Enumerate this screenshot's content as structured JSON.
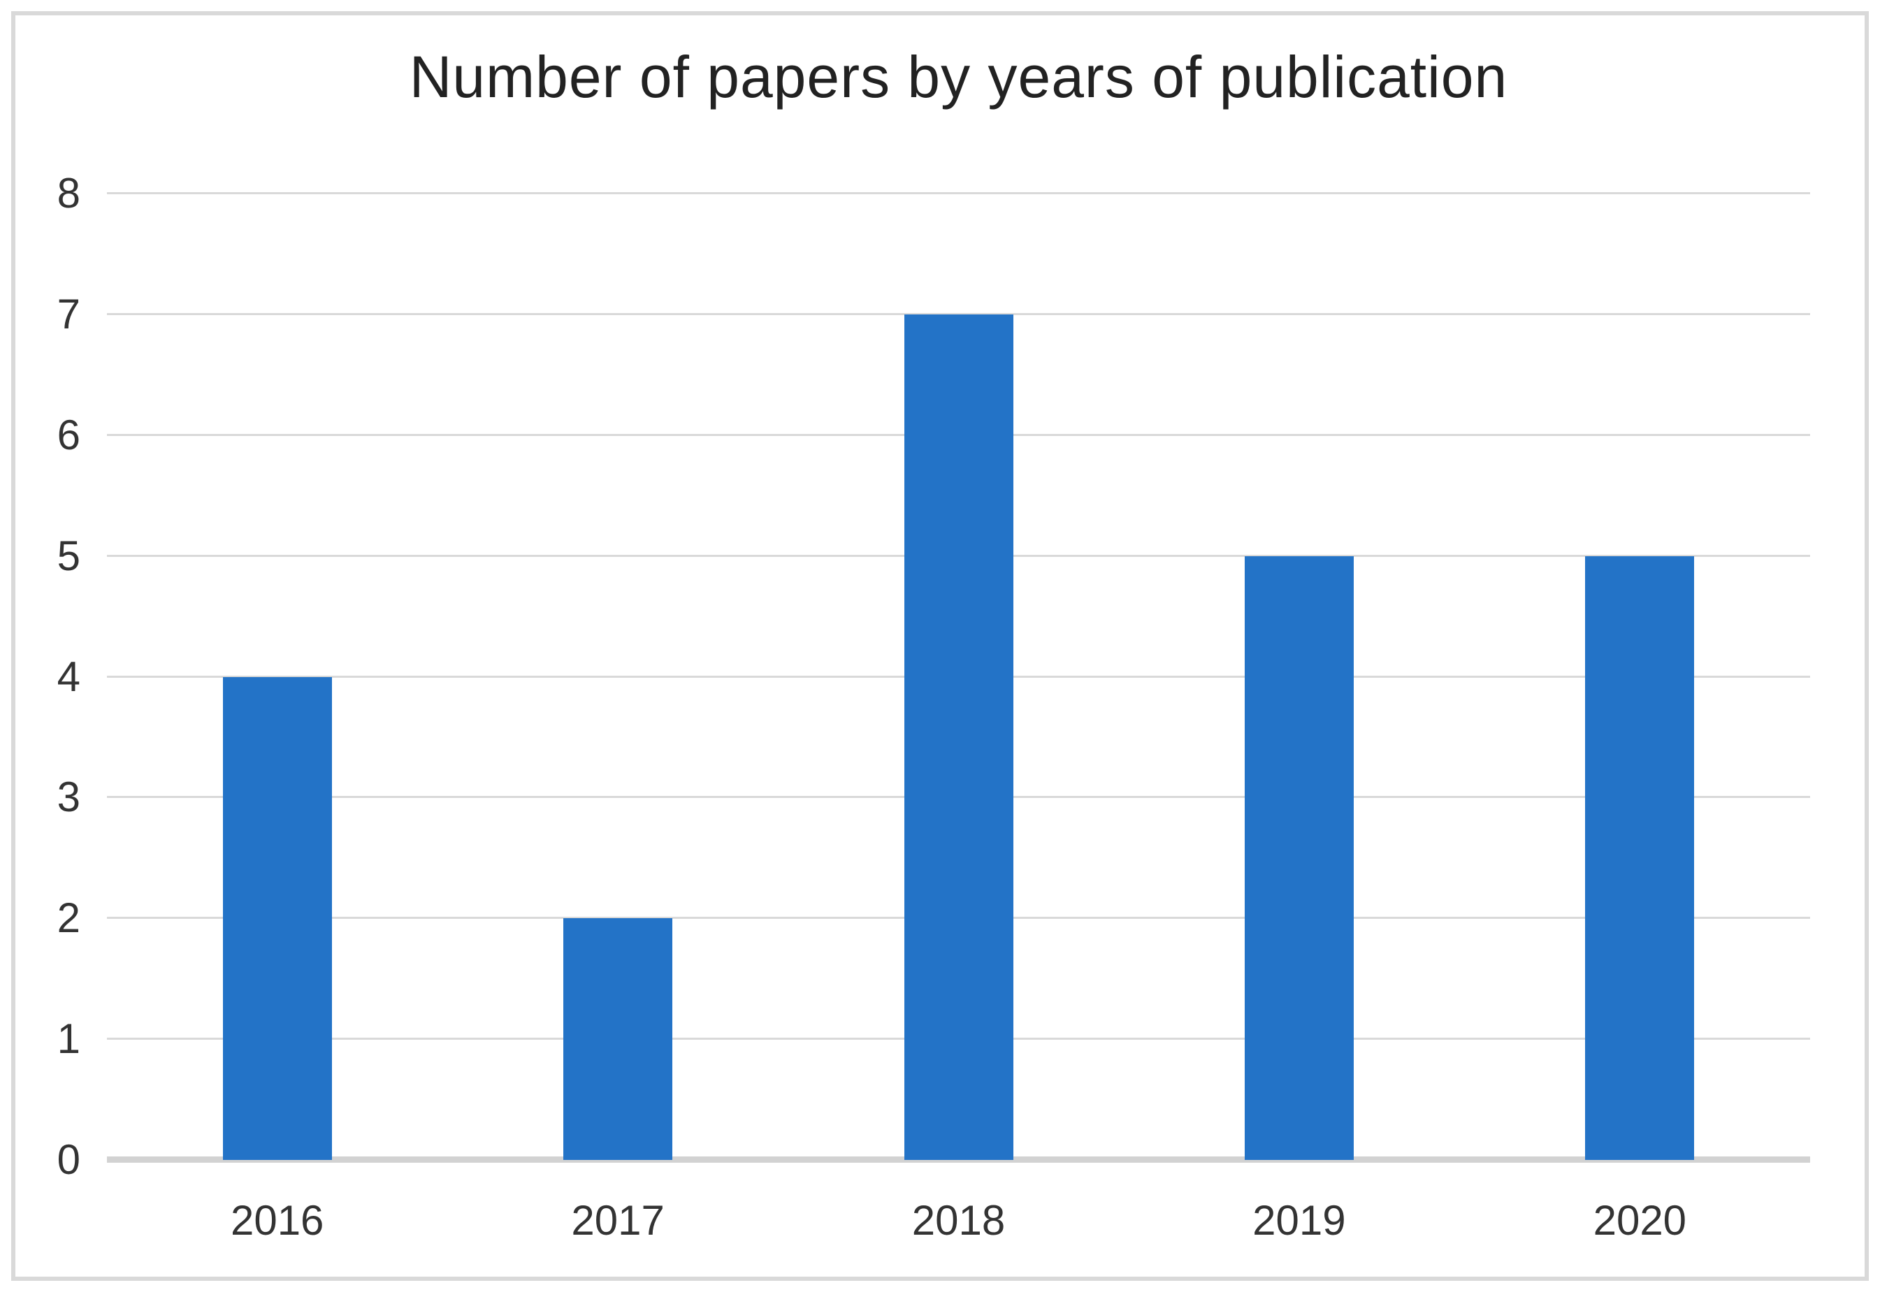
{
  "chart_data": {
    "type": "bar",
    "title": "Number of papers by years of publication",
    "categories": [
      "2016",
      "2017",
      "2018",
      "2019",
      "2020"
    ],
    "values": [
      4,
      2,
      7,
      5,
      5
    ],
    "xlabel": "",
    "ylabel": "",
    "ylim": [
      0,
      8
    ],
    "ytick_step": 1,
    "yticks": [
      0,
      1,
      2,
      3,
      4,
      5,
      6,
      7,
      8
    ],
    "grid": true,
    "legend": false,
    "colors": {
      "bar": "#2373c7",
      "gridline": "#d9d9d9",
      "axis_line": "#d2d2d2",
      "title_text": "#222222",
      "tick_text": "#333333",
      "frame_border": "#d9d9d9",
      "background": "#ffffff"
    }
  }
}
